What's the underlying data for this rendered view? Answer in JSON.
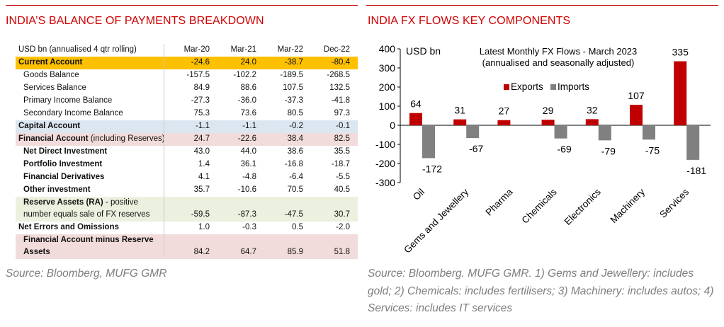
{
  "left_panel": {
    "title": "INDIA’S BALANCE OF PAYMENTS BREAKDOWN",
    "source": "Source: Bloomberg, MUFG GMR",
    "table": {
      "header": {
        "label": "USD bn (annualised 4 qtr rolling)",
        "columns": [
          "Mar-20",
          "Mar-21",
          "Mar-22",
          "Dec-22"
        ]
      },
      "rows": [
        {
          "bold": "Current Account",
          "rest": "",
          "values": [
            "-24.6",
            "24.0",
            "-38.7",
            "-80.4"
          ],
          "bg": "#FFC000",
          "indent": false
        },
        {
          "bold": "",
          "rest": "Goods Balance",
          "values": [
            "-157.5",
            "-102.2",
            "-189.5",
            "-268.5"
          ],
          "bg": "",
          "indent": true
        },
        {
          "bold": "",
          "rest": "Services Balance",
          "values": [
            "84.9",
            "88.6",
            "107.5",
            "132.5"
          ],
          "bg": "",
          "indent": true
        },
        {
          "bold": "",
          "rest": "Primary Income Balance",
          "values": [
            "-27.3",
            "-36.0",
            "-37.3",
            "-41.8"
          ],
          "bg": "",
          "indent": true
        },
        {
          "bold": "",
          "rest": "Secondary Income Balance",
          "values": [
            "75.3",
            "73.6",
            "80.5",
            "97.3"
          ],
          "bg": "",
          "indent": true
        },
        {
          "bold": "Capital Account",
          "rest": "",
          "values": [
            "-1.1",
            "-1.1",
            "-0.2",
            "-0.1"
          ],
          "bg": "#DCE6F1",
          "indent": false
        },
        {
          "bold": "Financial Account",
          "rest": " (including Reserves)",
          "values": [
            "24.7",
            "-22.6",
            "38.4",
            "82.5"
          ],
          "bg": "#F2DCDB",
          "indent": false
        },
        {
          "bold": "Net Direct Investment",
          "rest": "",
          "values": [
            "43.0",
            "44.0",
            "38.6",
            "35.5"
          ],
          "bg": "",
          "indent": true
        },
        {
          "bold": "Portfolio Investment",
          "rest": "",
          "values": [
            "1.4",
            "36.1",
            "-16.8",
            "-18.7"
          ],
          "bg": "",
          "indent": true
        },
        {
          "bold": "Financial Derivatives",
          "rest": "",
          "values": [
            "4.1",
            "-4.8",
            "-6.4",
            "-5.5"
          ],
          "bg": "",
          "indent": true
        },
        {
          "bold": "Other investment",
          "rest": "",
          "values": [
            "35.7",
            "-10.6",
            "70.5",
            "40.5"
          ],
          "bg": "",
          "indent": true
        },
        {
          "bold": "Reserve Assets (RA)",
          "rest": " - positive number  equals sale of FX reserves",
          "values": [
            "-59.5",
            "-87.3",
            "-47.5",
            "30.7"
          ],
          "bg": "#EBF1DE",
          "indent": true,
          "tall": true
        },
        {
          "bold": "Net Errors and Omissions",
          "rest": "",
          "values": [
            "1.0",
            "-0.3",
            "0.5",
            "-2.0"
          ],
          "bg": "",
          "indent": false
        },
        {
          "bold": "Financial Account minus Reserve Assets",
          "rest": "",
          "values": [
            "84.2",
            "64.7",
            "85.9",
            "51.8"
          ],
          "bg": "#F2DCDB",
          "indent": true,
          "tall": true
        }
      ]
    }
  },
  "right_panel": {
    "title": "INDIA FX FLOWS KEY COMPONENTS",
    "source": "Source: Bloomberg. MUFG GMR. 1) Gems and Jewellery: includes gold; 2) Chemicals: includes fertilisers; 3) Machinery: includes autos; 4) Services: includes IT services"
  },
  "chart_data": {
    "type": "bar",
    "title": "Latest Monthly FX Flows - March 2023",
    "subtitle": "(annualised and seasonally adjusted)",
    "ylabel": "USD bn",
    "ylim": [
      -300,
      400
    ],
    "yticks": [
      400,
      300,
      200,
      100,
      0,
      -100,
      -200,
      -300
    ],
    "categories": [
      "Oil",
      "Gems and Jewellery",
      "Pharma",
      "Chemicals",
      "Electronics",
      "Machinery",
      "Services"
    ],
    "series": [
      {
        "name": "Exports",
        "color": "#C00000",
        "values": [
          64,
          31,
          27,
          29,
          32,
          107,
          335
        ]
      },
      {
        "name": "Imports",
        "color": "#808080",
        "values": [
          -172,
          -67,
          null,
          -69,
          -79,
          -75,
          -181
        ]
      }
    ],
    "legend": "top-center",
    "grid": false
  }
}
